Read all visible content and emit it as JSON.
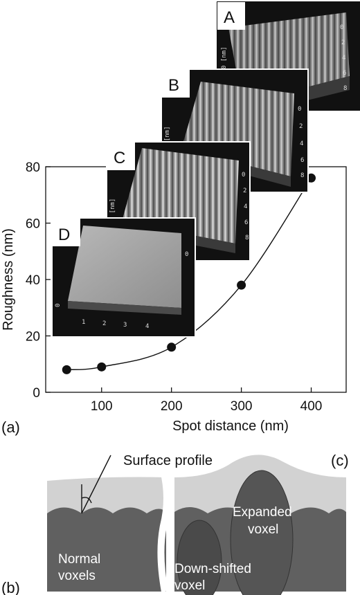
{
  "chart_data": {
    "type": "scatter",
    "panel_label": "(a)",
    "xlabel": "Spot distance (nm)",
    "ylabel": "Roughness (nm)",
    "xlim": [
      20,
      450
    ],
    "ylim": [
      0,
      80
    ],
    "x_ticks": [
      "100",
      "200",
      "300",
      "400"
    ],
    "y_ticks": [
      "0",
      "20",
      "40",
      "60",
      "80"
    ],
    "x": [
      50,
      100,
      200,
      300,
      400
    ],
    "y": [
      8,
      9,
      16,
      38,
      76
    ],
    "fit_curve": true,
    "grid": false
  },
  "insets": [
    {
      "label": "A",
      "axis_numbers": [
        "0",
        "2",
        "4",
        "6",
        "8"
      ],
      "axis_unit": "0 [nm]"
    },
    {
      "label": "B",
      "axis_numbers": [
        "0",
        "2",
        "4",
        "6",
        "8"
      ],
      "axis_unit": "0 [nm]"
    },
    {
      "label": "C",
      "axis_numbers": [
        "0",
        "2",
        "4",
        "6",
        "8"
      ],
      "axis_unit": "100 [nm]"
    },
    {
      "label": "D",
      "axis_numbers": [
        "0",
        "1",
        "2",
        "3",
        "4"
      ],
      "axis_unit": "0"
    }
  ],
  "diagram": {
    "panel_b": "(b)",
    "panel_c": "(c)",
    "title": "Surface profile",
    "normal_1": "Normal",
    "normal_2": "voxels",
    "down_1": "Down-shifted",
    "down_2": "voxel",
    "expanded_1": "Expanded",
    "expanded_2": "voxel"
  },
  "colors": {
    "inset_bg": "#111111",
    "surface": "#cfcfcf",
    "voxel": "#5b5b5b",
    "voxel_dark": "#474747"
  }
}
